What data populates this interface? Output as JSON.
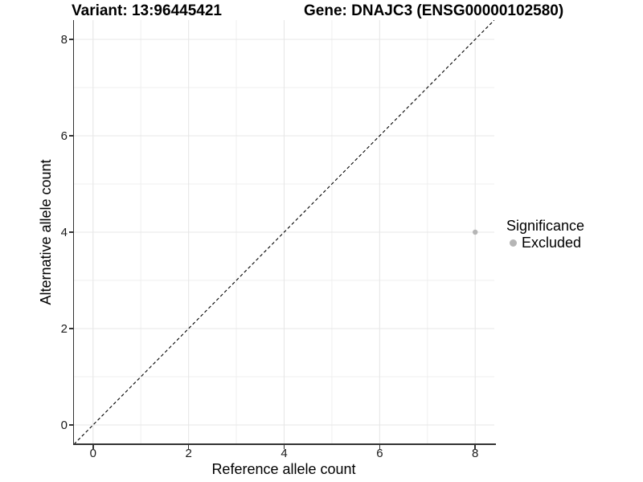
{
  "header": {
    "title_left": "Variant: 13:96445421",
    "title_right": "Gene: DNAJC3 (ENSG00000102580)"
  },
  "chart_data": {
    "type": "scatter",
    "xlabel": "Reference allele count",
    "ylabel": "Alternative allele count",
    "xlim": [
      -0.4,
      8.4
    ],
    "ylim": [
      -0.4,
      8.4
    ],
    "xticks": [
      0,
      2,
      4,
      6,
      8
    ],
    "yticks": [
      0,
      2,
      4,
      6,
      8
    ],
    "minor_xticks": [
      1,
      3,
      5,
      7
    ],
    "minor_yticks": [
      1,
      3,
      5,
      7
    ],
    "grid": true,
    "series": [
      {
        "name": "Excluded",
        "color": "#b5b5b5",
        "points": [
          {
            "x": 8,
            "y": 4
          }
        ]
      }
    ],
    "reference_line": {
      "kind": "identity",
      "linetype": "dashed",
      "color": "#000000",
      "from": [
        -0.4,
        -0.4
      ],
      "to": [
        8.4,
        8.4
      ]
    },
    "legend": {
      "title": "Significance",
      "position": "right",
      "items": [
        {
          "label": "Excluded",
          "color": "#b5b5b5"
        }
      ]
    },
    "colors": {
      "major_grid": "#e7e7e7",
      "minor_grid": "#efefef",
      "axis_line": "#333333",
      "tick_text": "#1a1a1a"
    }
  }
}
